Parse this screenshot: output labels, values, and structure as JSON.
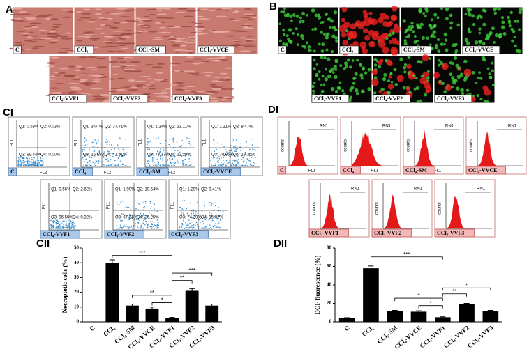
{
  "panel_labels": [
    "A",
    "B",
    "CI",
    "DI",
    "CII",
    "DII"
  ],
  "micrographs_a": [
    "C",
    "CCl₄",
    "CCl₄-SM",
    "CCl₄-VVCE",
    "CCl₄-VVF1",
    "CCl₄-VVF2",
    "CCl₄-VVF3"
  ],
  "fluorescence_b": [
    "C",
    "CCl₄",
    "CCl₄-SM",
    "CCl₄-VVCE",
    "CCl₄-VVF1",
    "CCl₄-VVF2",
    "CCl₄-VVF3"
  ],
  "flow_axes": {
    "x": "FL2",
    "y": "FL1"
  },
  "flow_ci": [
    {
      "label": "C",
      "quadrants": [
        "Q1: 0.53%",
        "Q2: 0.03%",
        "Q3: 99.44%",
        "Q4: 0.00%"
      ]
    },
    {
      "label": "CCl₄",
      "quadrants": [
        "Q1: 3.07%",
        "Q2: 37.71%",
        "Q3: 16.65%",
        "Q4: 41.61%"
      ]
    },
    {
      "label": "CCl₄-SM",
      "quadrants": [
        "Q1: 1.24%",
        "Q2: 13.11%",
        "Q3: 73.37%",
        "Q4: 12.29%"
      ]
    },
    {
      "label": "CCl₄-VVCE",
      "quadrants": [
        "Q1: 1.21%",
        "Q2: 8.47%",
        "Q3: 70.96%",
        "Q4: 19.36%"
      ]
    },
    {
      "label": "CCl₄-VVF1",
      "quadrants": [
        "Q1: 0.56%",
        "Q2: 2.62%",
        "Q3: 96.50%",
        "Q4: 0.32%"
      ]
    },
    {
      "label": "CCl₄-VVF2",
      "quadrants": [
        "Q1: 1.90%",
        "Q2: 10.64%",
        "Q3: 67.21%",
        "Q4: 20.25%"
      ]
    },
    {
      "label": "CCl₄-VVF3",
      "quadrants": [
        "Q1: 1.20%",
        "Q2: 9.41%",
        "Q3: 74.29%",
        "Q4: 15.02%"
      ]
    }
  ],
  "hist_axes": {
    "x": "FL1",
    "y": "counts",
    "gate": "RN1"
  },
  "histograms_di": [
    "C",
    "CCl₄",
    "CCl₄-SM",
    "CCl₄-VVCE",
    "CCl₄-VVF1",
    "CCl₄-VVF2",
    "CCl₄-VVF3"
  ],
  "chart_data": [
    {
      "type": "bar",
      "y_label": "Necroptotic cells (%)",
      "color": "#000000",
      "categories": [
        "C",
        "CCl₄",
        "CCl₄-SM",
        "CCl₄-VVCE",
        "CCl₄-VVF1",
        "CCl₄-VVF2",
        "CCl₄-VVF3"
      ],
      "values": [
        0,
        40,
        11,
        9,
        2.5,
        21,
        11
      ],
      "errors": [
        0,
        2,
        1,
        1,
        0.5,
        1.5,
        1
      ],
      "ylim": [
        0,
        50
      ],
      "yticks": [
        0,
        10,
        20,
        30,
        40,
        50
      ],
      "annotations": [
        "***",
        "**",
        "*",
        "**",
        "***"
      ]
    },
    {
      "type": "bar",
      "y_label": "DCF fluorescence  (%)",
      "color": "#000000",
      "categories": [
        "C",
        "CCl₄",
        "CCl₄-SM",
        "CCl₄-VVCE",
        "CCl₄-VVF1",
        "CCl₄-VVF2",
        "CCl₄-VVF3"
      ],
      "values": [
        4,
        58,
        12,
        11,
        5,
        19,
        12
      ],
      "errors": [
        0.5,
        2.5,
        0.5,
        1,
        0.5,
        1,
        0.5
      ],
      "ylim": [
        0,
        80
      ],
      "yticks": [
        0,
        20,
        40,
        60,
        80
      ],
      "annotations": [
        "***",
        "*",
        "*",
        "**",
        "*"
      ]
    }
  ]
}
